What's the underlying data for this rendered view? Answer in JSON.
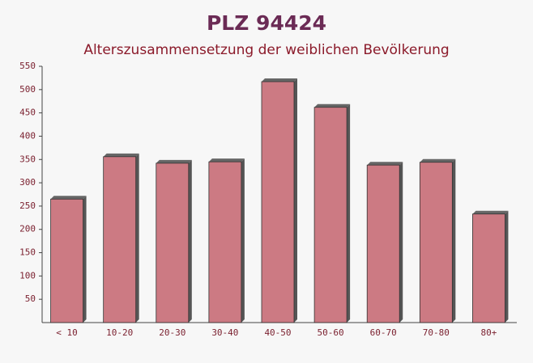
{
  "chart_data": {
    "type": "bar",
    "title": "PLZ 94424",
    "subtitle": "Alterszusammensetzung der weiblichen Bevölkerung",
    "categories": [
      "< 10",
      "10-20",
      "20-30",
      "30-40",
      "40-50",
      "50-60",
      "60-70",
      "70-80",
      "80+"
    ],
    "values": [
      265,
      356,
      342,
      345,
      517,
      462,
      338,
      344,
      233
    ],
    "color": "#c4646f",
    "ylim": [
      0,
      550
    ],
    "yticks": [
      50,
      100,
      150,
      200,
      250,
      300,
      350,
      400,
      450,
      500,
      550
    ],
    "grid": false
  }
}
